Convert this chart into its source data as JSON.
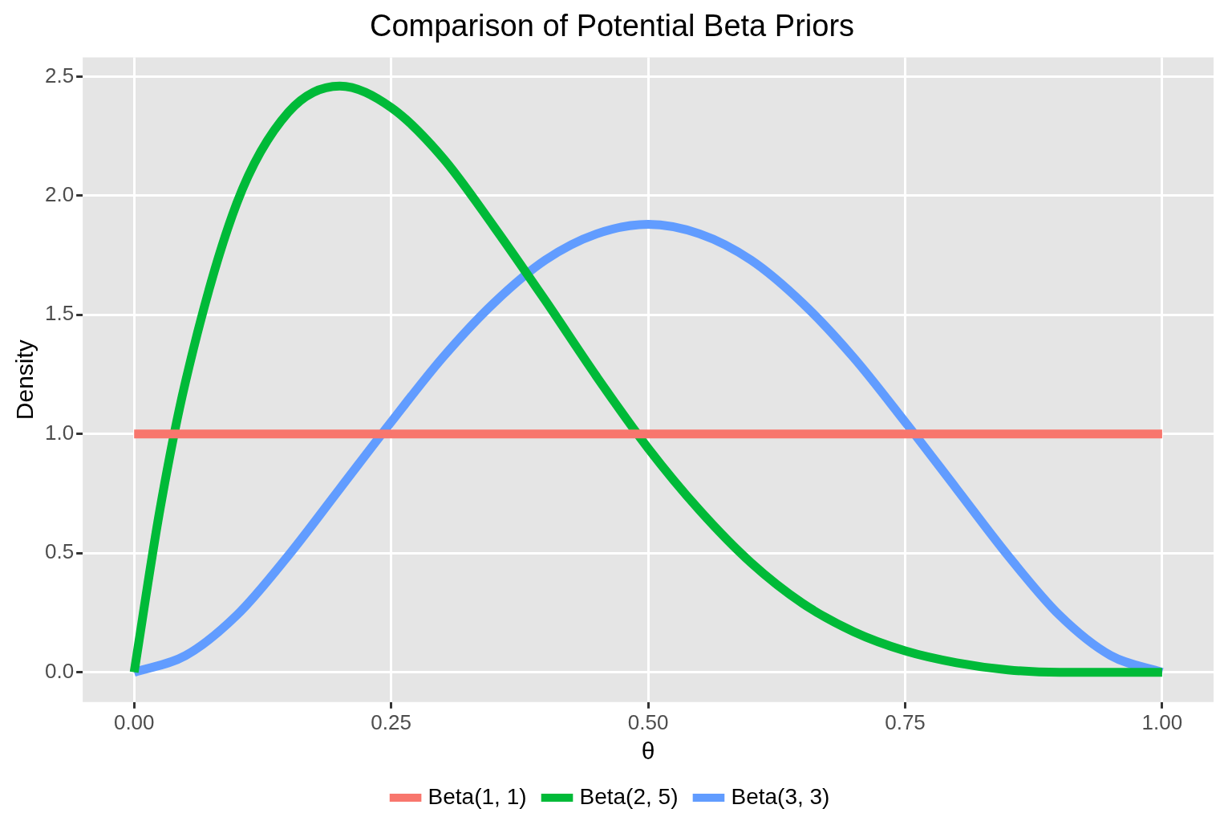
{
  "chart_data": {
    "type": "line",
    "title": "Comparison of Potential Beta Priors",
    "xlabel": "θ",
    "ylabel": "Density",
    "xlim": [
      -0.05,
      1.05
    ],
    "ylim": [
      -0.125,
      2.58
    ],
    "xticks": [
      {
        "value": 0,
        "label": "0.00"
      },
      {
        "value": 0.25,
        "label": "0.25"
      },
      {
        "value": 0.5,
        "label": "0.50"
      },
      {
        "value": 0.75,
        "label": "0.75"
      },
      {
        "value": 1,
        "label": "1.00"
      }
    ],
    "yticks": [
      {
        "value": 0,
        "label": "0.0"
      },
      {
        "value": 0.5,
        "label": "0.5"
      },
      {
        "value": 1,
        "label": "1.0"
      },
      {
        "value": 1.5,
        "label": "1.5"
      },
      {
        "value": 2,
        "label": "2.0"
      },
      {
        "value": 2.5,
        "label": "2.5"
      }
    ],
    "grid": true,
    "legend": "bottom",
    "marker": "none",
    "line_style": "solid",
    "series": [
      {
        "name": "Beta(1, 1)",
        "color": "#f8766d",
        "x": [
          0,
          1
        ],
        "values": [
          1,
          1
        ]
      },
      {
        "name": "Beta(2, 5)",
        "color": "#00ba38",
        "x": [
          0,
          0.025,
          0.05,
          0.1,
          0.15,
          0.2,
          0.25,
          0.3,
          0.35,
          0.4,
          0.45,
          0.5,
          0.55,
          0.6,
          0.65,
          0.7,
          0.75,
          0.8,
          0.85,
          0.9,
          0.95,
          1
        ],
        "values": [
          0,
          0.68,
          1.22,
          1.97,
          2.35,
          2.46,
          2.37,
          2.16,
          1.87,
          1.56,
          1.24,
          0.94,
          0.68,
          0.46,
          0.29,
          0.17,
          0.09,
          0.04,
          0.01,
          0,
          0,
          0
        ]
      },
      {
        "name": "Beta(3, 3)",
        "color": "#619cff",
        "x": [
          0,
          0.05,
          0.1,
          0.15,
          0.2,
          0.25,
          0.3,
          0.35,
          0.4,
          0.45,
          0.5,
          0.55,
          0.6,
          0.65,
          0.7,
          0.75,
          0.8,
          0.85,
          0.9,
          0.95,
          1
        ],
        "values": [
          0,
          0.07,
          0.24,
          0.49,
          0.77,
          1.05,
          1.32,
          1.55,
          1.73,
          1.84,
          1.88,
          1.84,
          1.73,
          1.55,
          1.32,
          1.05,
          0.77,
          0.49,
          0.24,
          0.07,
          0
        ]
      }
    ]
  }
}
